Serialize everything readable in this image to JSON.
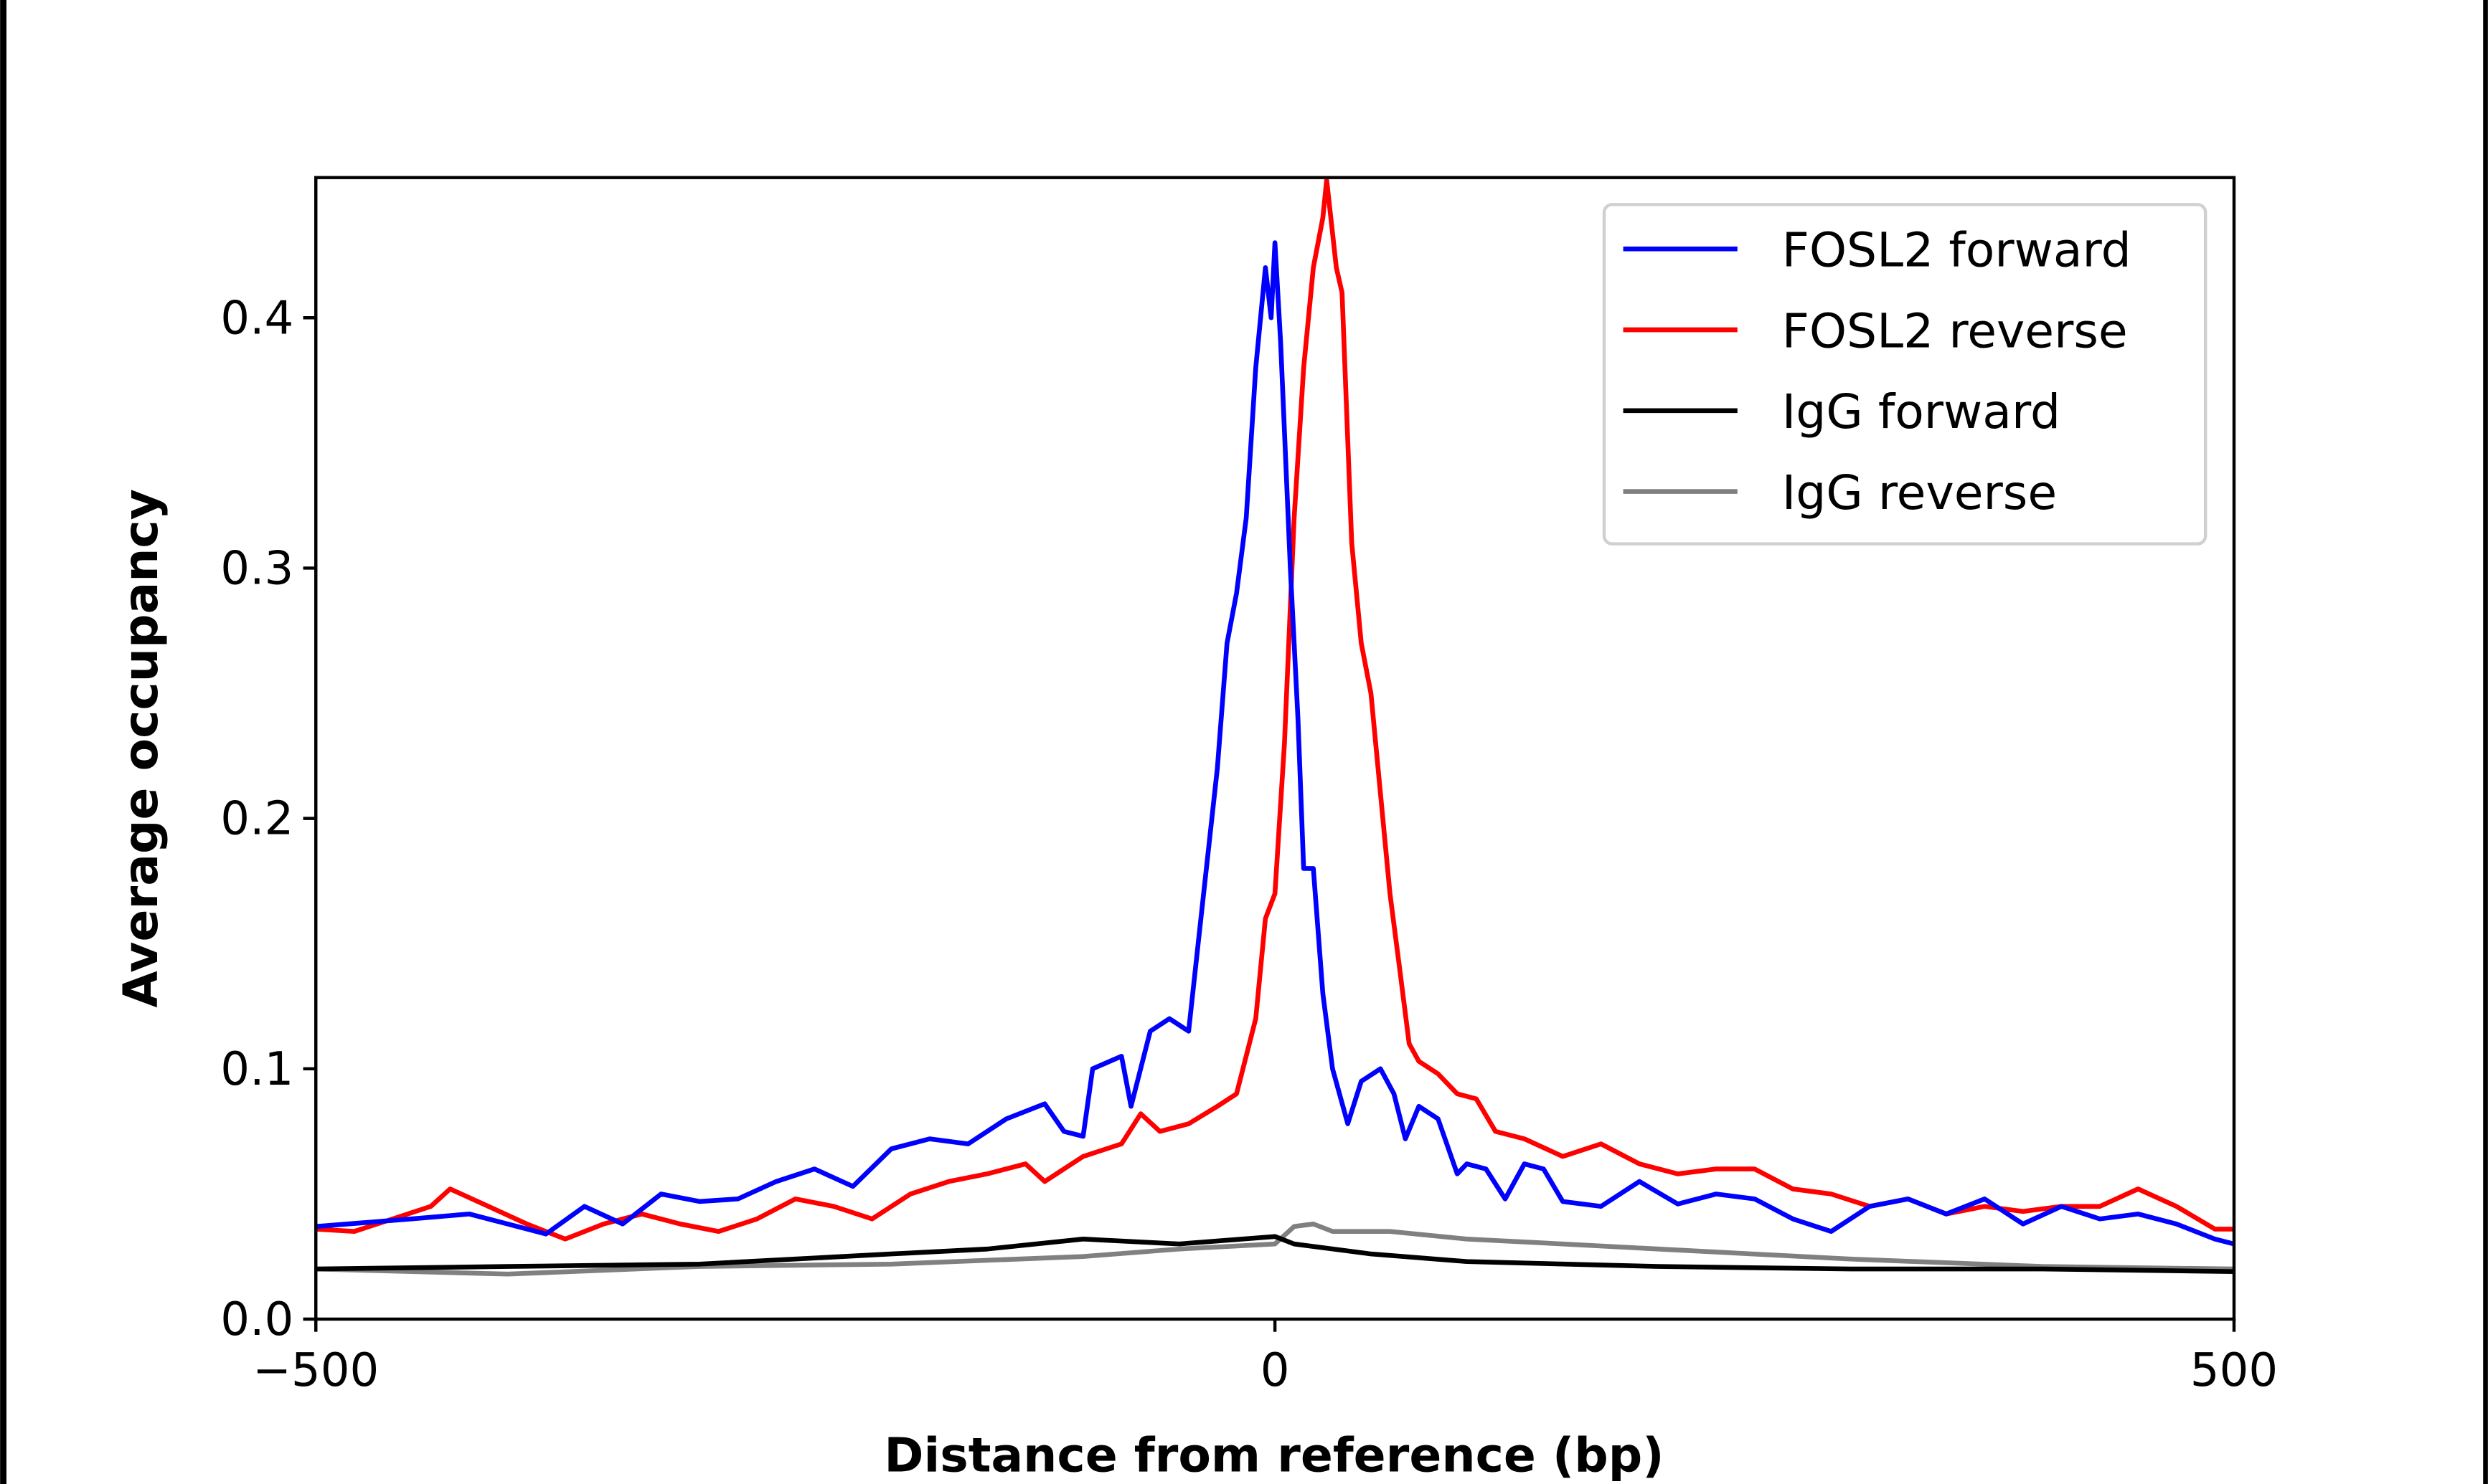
{
  "chart_data": {
    "type": "line",
    "title": "",
    "xlabel": "Distance from reference (bp)",
    "ylabel": "Average occupancy",
    "xlim": [
      -500,
      500
    ],
    "ylim": [
      0,
      0.456
    ],
    "xticks": [
      -500,
      0,
      500
    ],
    "xtick_labels": [
      "−500",
      "0",
      "500"
    ],
    "yticks": [
      0.0,
      0.1,
      0.2,
      0.3,
      0.4
    ],
    "ytick_labels": [
      "0.0",
      "0.1",
      "0.2",
      "0.3",
      "0.4"
    ],
    "grid": false,
    "legend_position": "upper-right",
    "series": [
      {
        "name": "FOSL2 forward",
        "color": "#0000ff",
        "x": [
          -500,
          -450,
          -420,
          -400,
          -380,
          -360,
          -340,
          -320,
          -300,
          -280,
          -260,
          -240,
          -220,
          -200,
          -180,
          -160,
          -140,
          -120,
          -110,
          -100,
          -95,
          -80,
          -75,
          -65,
          -55,
          -45,
          -40,
          -30,
          -25,
          -20,
          -15,
          -10,
          -5,
          -2,
          0,
          3,
          8,
          12,
          15,
          20,
          25,
          30,
          38,
          45,
          55,
          62,
          68,
          75,
          85,
          95,
          100,
          110,
          120,
          130,
          140,
          150,
          170,
          190,
          210,
          230,
          250,
          270,
          290,
          310,
          330,
          350,
          370,
          390,
          410,
          430,
          450,
          470,
          490,
          500
        ],
        "y": [
          0.037,
          0.04,
          0.042,
          0.038,
          0.034,
          0.045,
          0.038,
          0.05,
          0.047,
          0.048,
          0.055,
          0.06,
          0.053,
          0.068,
          0.072,
          0.07,
          0.08,
          0.086,
          0.075,
          0.073,
          0.1,
          0.105,
          0.085,
          0.115,
          0.12,
          0.115,
          0.15,
          0.22,
          0.27,
          0.29,
          0.32,
          0.38,
          0.42,
          0.4,
          0.43,
          0.39,
          0.3,
          0.24,
          0.18,
          0.18,
          0.13,
          0.1,
          0.078,
          0.095,
          0.1,
          0.09,
          0.072,
          0.085,
          0.08,
          0.058,
          0.062,
          0.06,
          0.048,
          0.062,
          0.06,
          0.047,
          0.045,
          0.055,
          0.046,
          0.05,
          0.048,
          0.04,
          0.035,
          0.045,
          0.048,
          0.042,
          0.048,
          0.038,
          0.045,
          0.04,
          0.042,
          0.038,
          0.032,
          0.03
        ]
      },
      {
        "name": "FOSL2 reverse",
        "color": "#ff0000",
        "x": [
          -500,
          -480,
          -460,
          -440,
          -430,
          -410,
          -390,
          -370,
          -350,
          -330,
          -310,
          -290,
          -270,
          -250,
          -230,
          -210,
          -190,
          -170,
          -150,
          -130,
          -120,
          -100,
          -80,
          -70,
          -60,
          -45,
          -30,
          -20,
          -10,
          -5,
          0,
          5,
          10,
          15,
          20,
          25,
          27,
          32,
          35,
          40,
          45,
          50,
          55,
          60,
          65,
          70,
          75,
          85,
          95,
          105,
          115,
          130,
          150,
          170,
          190,
          210,
          230,
          250,
          270,
          290,
          310,
          330,
          350,
          370,
          390,
          410,
          430,
          450,
          470,
          490,
          500
        ],
        "y": [
          0.036,
          0.035,
          0.04,
          0.045,
          0.052,
          0.045,
          0.038,
          0.032,
          0.038,
          0.042,
          0.038,
          0.035,
          0.04,
          0.048,
          0.045,
          0.04,
          0.05,
          0.055,
          0.058,
          0.062,
          0.055,
          0.065,
          0.07,
          0.082,
          0.075,
          0.078,
          0.085,
          0.09,
          0.12,
          0.16,
          0.17,
          0.23,
          0.32,
          0.38,
          0.42,
          0.44,
          0.455,
          0.42,
          0.41,
          0.31,
          0.27,
          0.25,
          0.21,
          0.17,
          0.14,
          0.11,
          0.103,
          0.098,
          0.09,
          0.088,
          0.075,
          0.072,
          0.065,
          0.07,
          0.062,
          0.058,
          0.06,
          0.06,
          0.052,
          0.05,
          0.045,
          0.048,
          0.042,
          0.045,
          0.043,
          0.045,
          0.045,
          0.052,
          0.045,
          0.036,
          0.036
        ]
      },
      {
        "name": "IgG forward",
        "color": "#000000",
        "x": [
          -500,
          -400,
          -300,
          -200,
          -150,
          -100,
          -50,
          0,
          10,
          50,
          100,
          200,
          300,
          400,
          500
        ],
        "y": [
          0.02,
          0.021,
          0.022,
          0.026,
          0.028,
          0.032,
          0.03,
          0.033,
          0.03,
          0.026,
          0.023,
          0.021,
          0.02,
          0.02,
          0.019
        ]
      },
      {
        "name": "IgG reverse",
        "color": "#808080",
        "x": [
          -500,
          -400,
          -300,
          -200,
          -100,
          -50,
          0,
          10,
          20,
          30,
          60,
          100,
          150,
          200,
          300,
          400,
          500
        ],
        "y": [
          0.02,
          0.018,
          0.021,
          0.022,
          0.025,
          0.028,
          0.03,
          0.037,
          0.038,
          0.035,
          0.035,
          0.032,
          0.03,
          0.028,
          0.024,
          0.021,
          0.02
        ]
      }
    ]
  }
}
